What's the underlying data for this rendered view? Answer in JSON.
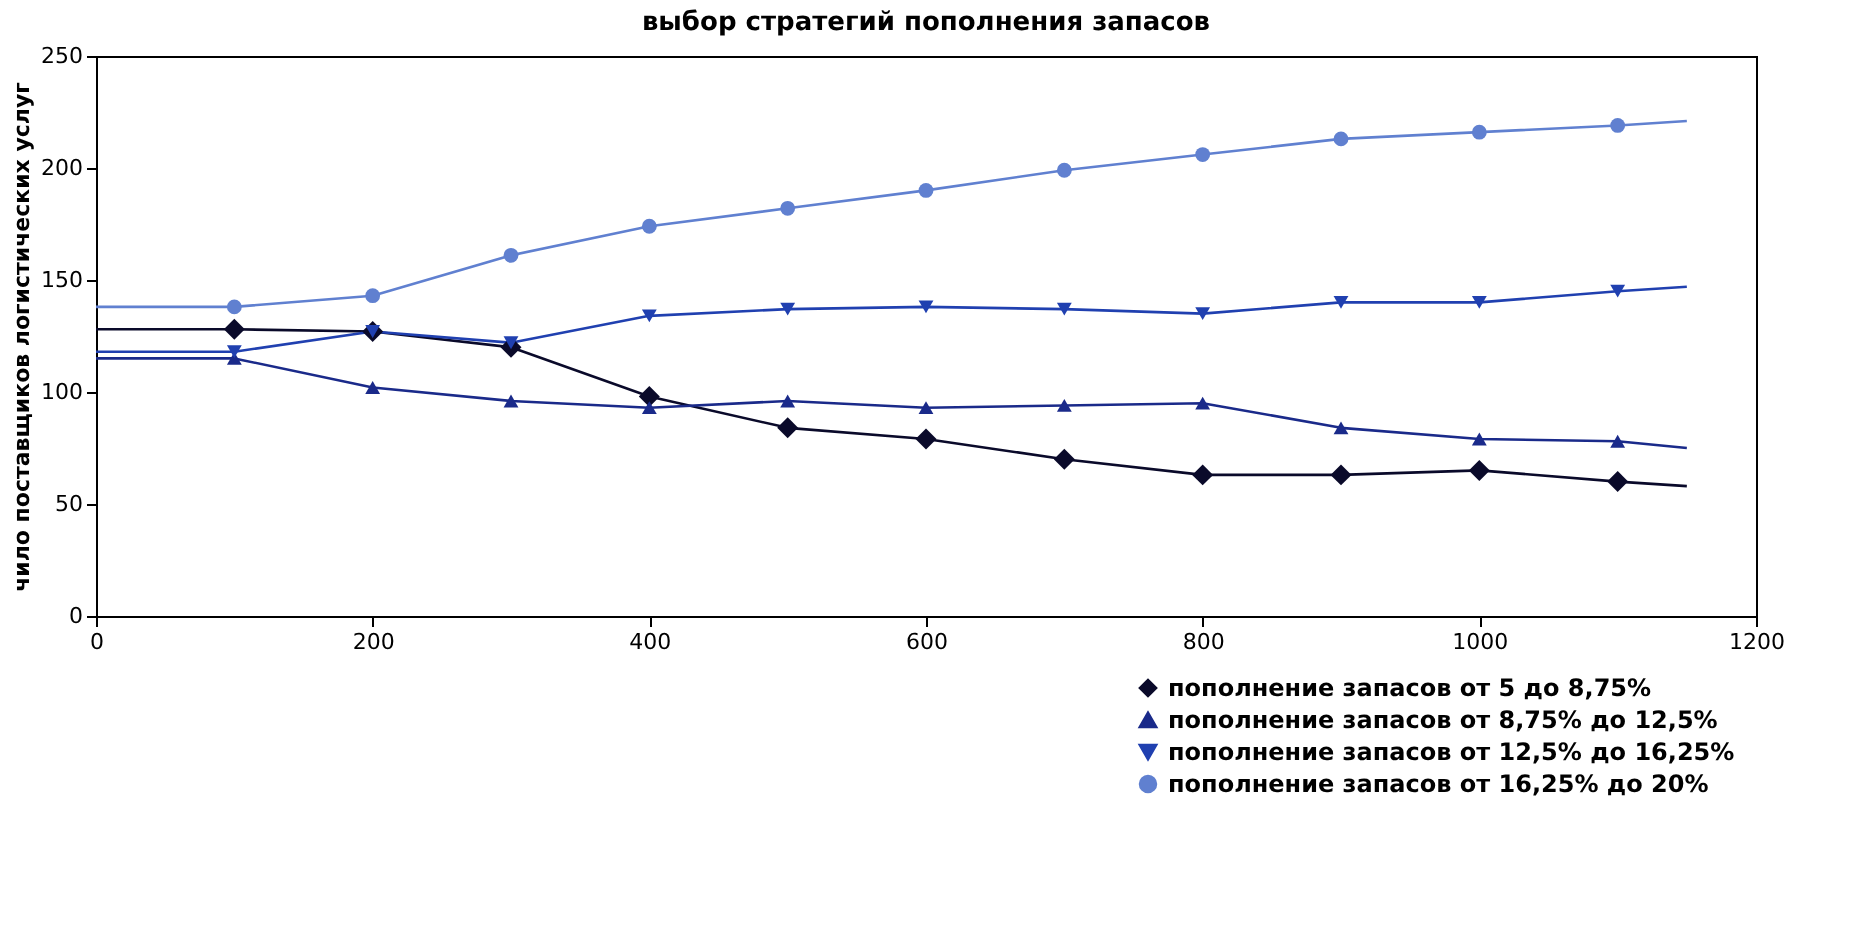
{
  "chart_data": {
    "type": "line",
    "title": "выбор стратегий пополнения запасов",
    "ylabel": "чило поставщиков логистических услуг",
    "xlim": [
      0,
      1200
    ],
    "xticks": [
      0,
      200,
      400,
      600,
      800,
      1000,
      1200
    ],
    "ylim": [
      0,
      250
    ],
    "yticks": [
      0,
      50,
      100,
      150,
      200,
      250
    ],
    "grid": false,
    "legend": "bottom right",
    "line_style": "solid",
    "x": [
      0,
      100,
      200,
      300,
      400,
      500,
      600,
      700,
      800,
      900,
      1000,
      1100,
      1150
    ],
    "series": [
      {
        "name": "пополнение запасов от 5 до 8,75%",
        "color": "#0a0a2a",
        "marker": "diamond",
        "values": [
          128,
          128,
          127,
          120,
          98,
          84,
          79,
          70,
          63,
          63,
          65,
          60,
          58
        ]
      },
      {
        "name": "пополнение запасов от 8,75% до 12,5%",
        "color": "#1a2a8a",
        "marker": "triangle",
        "values": [
          115,
          115,
          102,
          96,
          93,
          96,
          93,
          94,
          95,
          84,
          79,
          78,
          75
        ]
      },
      {
        "name": "пополнение запасов от 12,5% до 16,25%",
        "color": "#2040b0",
        "marker": "triangle-down",
        "values": [
          118,
          118,
          127,
          122,
          134,
          137,
          138,
          137,
          135,
          140,
          140,
          145,
          147
        ]
      },
      {
        "name": "пополнение запасов от 16,25% до 20%",
        "color": "#6080d0",
        "marker": "circle",
        "values": [
          138,
          138,
          143,
          161,
          174,
          182,
          190,
          199,
          206,
          213,
          216,
          219,
          221
        ]
      }
    ]
  }
}
